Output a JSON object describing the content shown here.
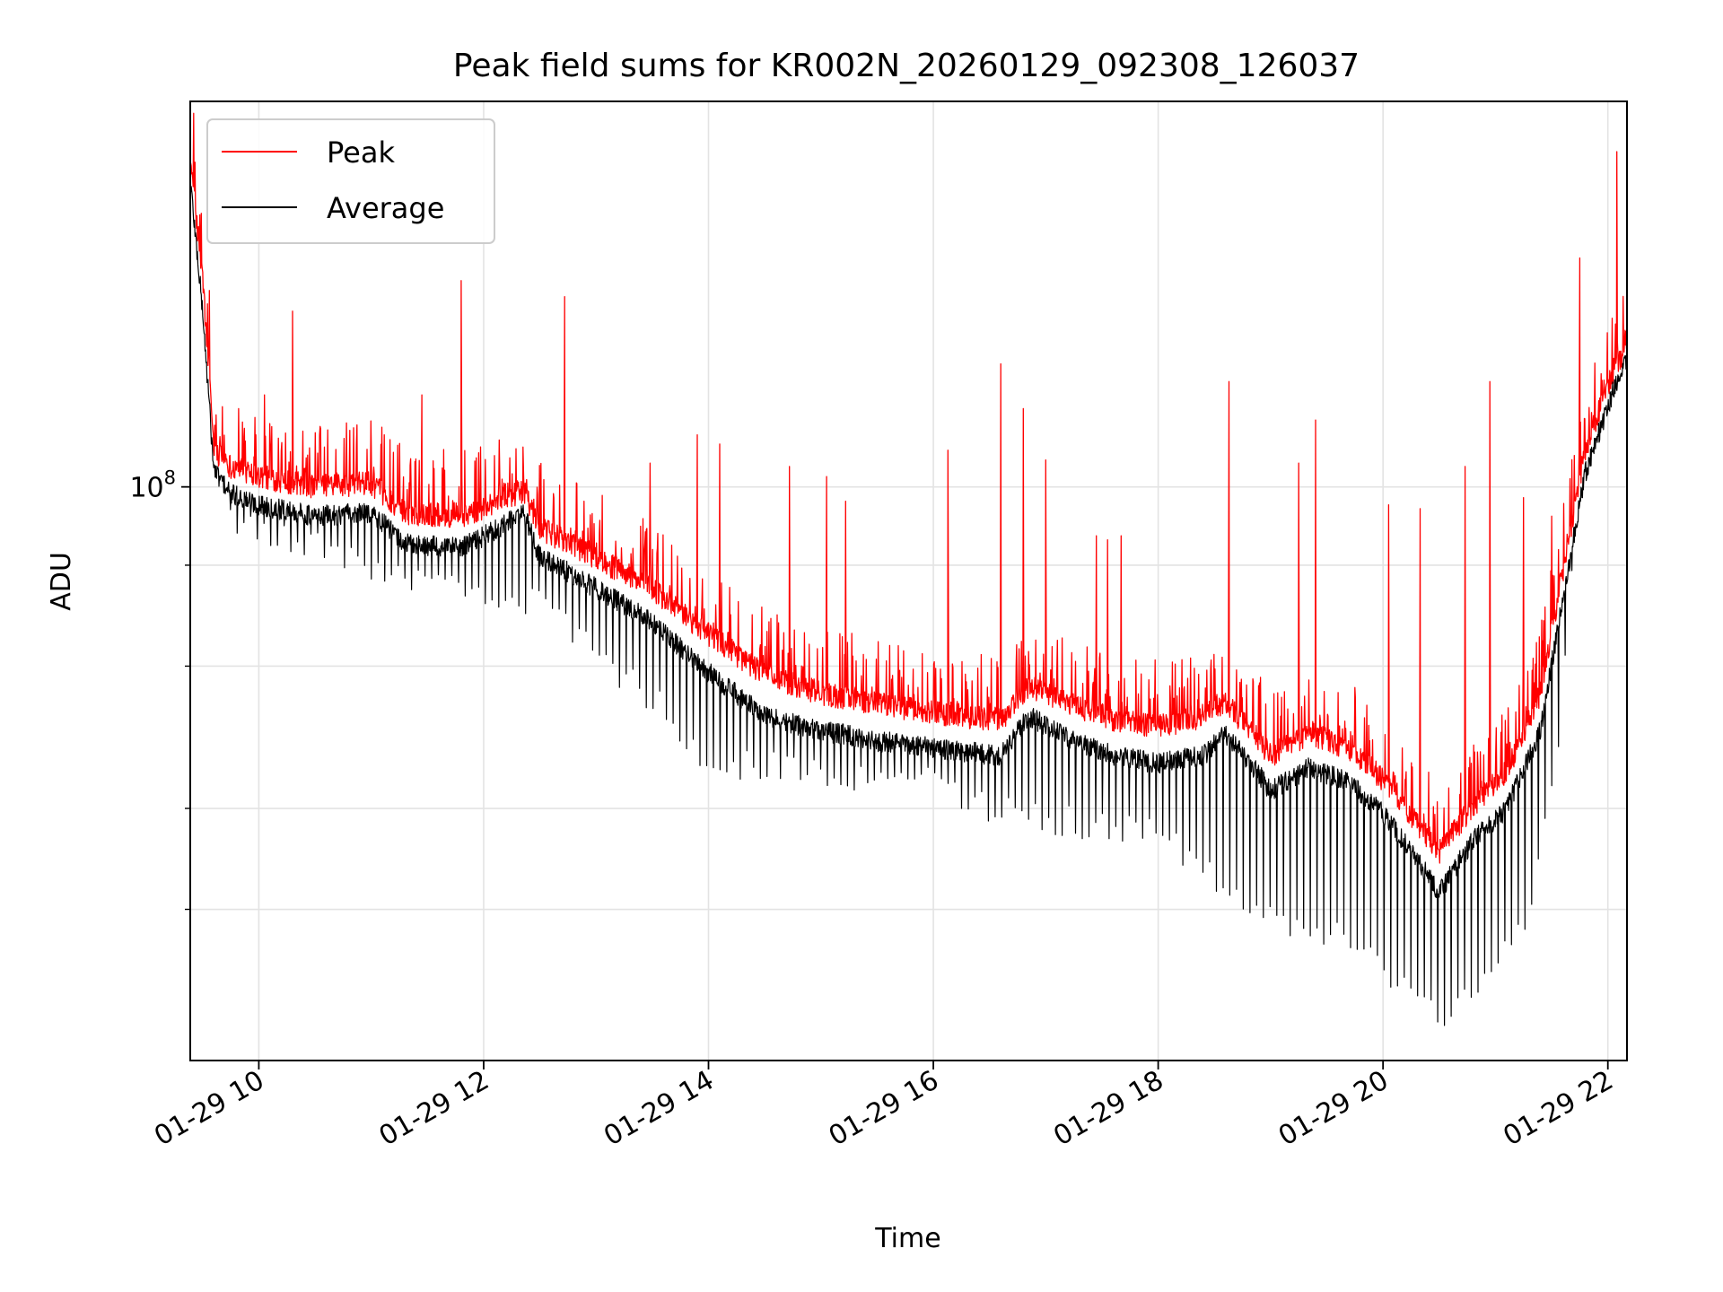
{
  "chart_data": {
    "type": "line",
    "title": "Peak field sums for KR002N_20260129_092308_126037",
    "xlabel": "Time",
    "ylabel": "ADU",
    "yscale": "log",
    "grid": true,
    "legend_position": "top-left",
    "x_unit": "hours since 01-29 00:00",
    "xlim": [
      9.39,
      22.17
    ],
    "ylim": [
      19500000,
      300000000
    ],
    "x_ticks": [
      {
        "value": 10,
        "label": "01-29 10"
      },
      {
        "value": 12,
        "label": "01-29 12"
      },
      {
        "value": 14,
        "label": "01-29 14"
      },
      {
        "value": 16,
        "label": "01-29 16"
      },
      {
        "value": 18,
        "label": "01-29 18"
      },
      {
        "value": 20,
        "label": "01-29 20"
      },
      {
        "value": 22,
        "label": "01-29 22"
      }
    ],
    "y_major_ticks": [
      {
        "value": 100000000,
        "base": "10",
        "exponent": "8"
      }
    ],
    "y_minor_ticks": [
      30000000,
      40000000,
      60000000,
      80000000
    ],
    "series": [
      {
        "name": "Peak",
        "color": "#ff0000",
        "base_profile": [
          [
            9.39,
            250000000
          ],
          [
            9.5,
            180000000
          ],
          [
            9.6,
            110000000
          ],
          [
            9.75,
            105000000
          ],
          [
            10.0,
            102000000
          ],
          [
            10.5,
            99000000
          ],
          [
            11.0,
            100000000
          ],
          [
            11.3,
            92000000
          ],
          [
            11.8,
            91000000
          ],
          [
            12.2,
            96000000
          ],
          [
            12.35,
            98000000
          ],
          [
            12.5,
            88000000
          ],
          [
            13.0,
            81000000
          ],
          [
            13.5,
            74000000
          ],
          [
            14.0,
            65000000
          ],
          [
            14.5,
            58000000
          ],
          [
            15.0,
            55000000
          ],
          [
            15.5,
            53500000
          ],
          [
            16.0,
            52000000
          ],
          [
            16.6,
            51000000
          ],
          [
            16.85,
            56000000
          ],
          [
            17.2,
            53500000
          ],
          [
            17.6,
            51000000
          ],
          [
            18.0,
            50000000
          ],
          [
            18.4,
            51500000
          ],
          [
            18.6,
            53500000
          ],
          [
            18.9,
            48000000
          ],
          [
            19.0,
            46000000
          ],
          [
            19.35,
            49000000
          ],
          [
            19.7,
            47000000
          ],
          [
            20.0,
            43000000
          ],
          [
            20.3,
            38000000
          ],
          [
            20.5,
            35000000
          ],
          [
            20.8,
            40000000
          ],
          [
            21.1,
            44000000
          ],
          [
            21.4,
            55000000
          ],
          [
            21.6,
            78000000
          ],
          [
            21.8,
            110000000
          ],
          [
            22.05,
            138000000
          ],
          [
            22.17,
            148000000
          ]
        ],
        "spikes": [
          [
            9.42,
            290000000
          ],
          [
            9.56,
            175000000
          ],
          [
            9.82,
            125000000
          ],
          [
            10.05,
            130000000
          ],
          [
            10.3,
            165000000
          ],
          [
            10.55,
            118000000
          ],
          [
            10.78,
            120000000
          ],
          [
            11.0,
            112000000
          ],
          [
            11.45,
            130000000
          ],
          [
            11.8,
            180000000
          ],
          [
            12.35,
            112000000
          ],
          [
            12.72,
            172000000
          ],
          [
            13.48,
            107000000
          ],
          [
            13.9,
            116000000
          ],
          [
            14.1,
            113000000
          ],
          [
            14.72,
            106000000
          ],
          [
            15.05,
            103000000
          ],
          [
            15.22,
            96000000
          ],
          [
            16.13,
            111000000
          ],
          [
            16.6,
            142000000
          ],
          [
            16.8,
            125000000
          ],
          [
            17.0,
            108000000
          ],
          [
            17.45,
            87000000
          ],
          [
            17.55,
            86000000
          ],
          [
            17.67,
            87000000
          ],
          [
            18.63,
            135000000
          ],
          [
            19.25,
            107000000
          ],
          [
            19.4,
            121000000
          ],
          [
            20.05,
            95000000
          ],
          [
            20.33,
            94000000
          ],
          [
            20.73,
            106000000
          ],
          [
            20.95,
            135000000
          ],
          [
            21.25,
            97000000
          ],
          [
            21.5,
            92000000
          ],
          [
            21.75,
            192000000
          ],
          [
            22.08,
            260000000
          ]
        ]
      },
      {
        "name": "Average",
        "color": "#000000",
        "base_profile": [
          [
            9.39,
            240000000
          ],
          [
            9.5,
            165000000
          ],
          [
            9.6,
            105000000
          ],
          [
            9.75,
            98000000
          ],
          [
            10.0,
            95000000
          ],
          [
            10.5,
            92000000
          ],
          [
            11.0,
            93000000
          ],
          [
            11.3,
            85000000
          ],
          [
            11.8,
            84000000
          ],
          [
            12.2,
            90000000
          ],
          [
            12.35,
            93000000
          ],
          [
            12.5,
            82000000
          ],
          [
            13.0,
            75000000
          ],
          [
            13.5,
            68000000
          ],
          [
            14.0,
            59000000
          ],
          [
            14.5,
            52000000
          ],
          [
            15.0,
            50000000
          ],
          [
            15.5,
            48500000
          ],
          [
            16.0,
            47500000
          ],
          [
            16.6,
            46500000
          ],
          [
            16.85,
            52000000
          ],
          [
            17.2,
            49000000
          ],
          [
            17.6,
            46500000
          ],
          [
            18.0,
            45500000
          ],
          [
            18.4,
            46500000
          ],
          [
            18.6,
            49500000
          ],
          [
            18.9,
            44000000
          ],
          [
            19.0,
            42000000
          ],
          [
            19.35,
            45000000
          ],
          [
            19.7,
            43000000
          ],
          [
            20.0,
            39500000
          ],
          [
            20.3,
            34500000
          ],
          [
            20.5,
            31500000
          ],
          [
            20.8,
            36500000
          ],
          [
            21.1,
            40000000
          ],
          [
            21.4,
            50000000
          ],
          [
            21.6,
            73000000
          ],
          [
            21.8,
            104000000
          ],
          [
            22.05,
            132000000
          ],
          [
            22.17,
            145000000
          ]
        ],
        "dip_floor_profile": [
          [
            9.7,
            88000000
          ],
          [
            11.3,
            74000000
          ],
          [
            12.5,
            68000000
          ],
          [
            13.5,
            52000000
          ],
          [
            14.0,
            44000000
          ],
          [
            15.0,
            42000000
          ],
          [
            16.0,
            41000000
          ],
          [
            16.8,
            37000000
          ],
          [
            18.0,
            36000000
          ],
          [
            18.7,
            30000000
          ],
          [
            19.0,
            28000000
          ],
          [
            19.5,
            27000000
          ],
          [
            20.0,
            24000000
          ],
          [
            20.5,
            21000000
          ],
          [
            20.9,
            24000000
          ],
          [
            21.3,
            27000000
          ],
          [
            21.55,
            45000000
          ],
          [
            21.7,
            80000000
          ]
        ]
      }
    ]
  }
}
